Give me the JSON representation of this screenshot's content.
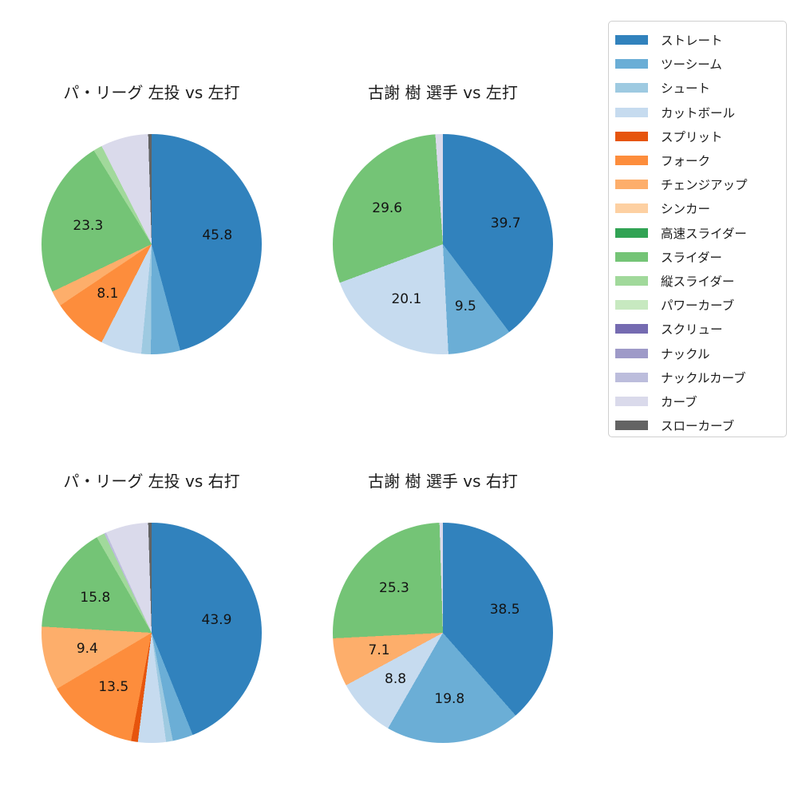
{
  "figure": {
    "background": "#ffffff",
    "value_unit": "percent"
  },
  "legend": {
    "position": "right",
    "items": [
      {
        "label": "ストレート",
        "color": "#3182bd"
      },
      {
        "label": "ツーシーム",
        "color": "#6baed6"
      },
      {
        "label": "シュート",
        "color": "#9ecae1"
      },
      {
        "label": "カットボール",
        "color": "#c6dbef"
      },
      {
        "label": "スプリット",
        "color": "#e6550d"
      },
      {
        "label": "フォーク",
        "color": "#fd8d3c"
      },
      {
        "label": "チェンジアップ",
        "color": "#fdae6b"
      },
      {
        "label": "シンカー",
        "color": "#fdd0a2"
      },
      {
        "label": "高速スライダー",
        "color": "#31a354"
      },
      {
        "label": "スライダー",
        "color": "#74c476"
      },
      {
        "label": "縦スライダー",
        "color": "#a1d99b"
      },
      {
        "label": "パワーカーブ",
        "color": "#c7e9c0"
      },
      {
        "label": "スクリュー",
        "color": "#756bb1"
      },
      {
        "label": "ナックル",
        "color": "#9e9ac8"
      },
      {
        "label": "ナックルカーブ",
        "color": "#bcbddc"
      },
      {
        "label": "カーブ",
        "color": "#dadaeb"
      },
      {
        "label": "スローカーブ",
        "color": "#636363"
      }
    ]
  },
  "chart_data": [
    {
      "type": "pie",
      "title": "パ・リーグ 左投 vs 左打",
      "start_angle": "top",
      "direction": "clockwise",
      "slices": [
        {
          "label": "ストレート",
          "value": 45.8,
          "display": "45.8"
        },
        {
          "label": "ツーシーム",
          "value": 4.3
        },
        {
          "label": "シュート",
          "value": 1.4
        },
        {
          "label": "カットボール",
          "value": 6.0
        },
        {
          "label": "フォーク",
          "value": 8.1,
          "display": "8.1"
        },
        {
          "label": "チェンジアップ",
          "value": 2.3
        },
        {
          "label": "スライダー",
          "value": 23.3,
          "display": "23.3"
        },
        {
          "label": "縦スライダー",
          "value": 1.3
        },
        {
          "label": "カーブ",
          "value": 7.0
        },
        {
          "label": "スローカーブ",
          "value": 0.5
        }
      ]
    },
    {
      "type": "pie",
      "title": "古謝 樹 選手 vs 左打",
      "start_angle": "top",
      "direction": "clockwise",
      "slices": [
        {
          "label": "ストレート",
          "value": 39.7,
          "display": "39.7"
        },
        {
          "label": "ツーシーム",
          "value": 9.5,
          "display": "9.5"
        },
        {
          "label": "カットボール",
          "value": 20.1,
          "display": "20.1"
        },
        {
          "label": "スライダー",
          "value": 29.6,
          "display": "29.6"
        },
        {
          "label": "カーブ",
          "value": 1.1
        }
      ]
    },
    {
      "type": "pie",
      "title": "パ・リーグ 左投 vs 右打",
      "start_angle": "top",
      "direction": "clockwise",
      "slices": [
        {
          "label": "ストレート",
          "value": 43.9,
          "display": "43.9"
        },
        {
          "label": "ツーシーム",
          "value": 3.0
        },
        {
          "label": "シュート",
          "value": 1.0
        },
        {
          "label": "カットボール",
          "value": 4.1
        },
        {
          "label": "スプリット",
          "value": 1.0
        },
        {
          "label": "フォーク",
          "value": 13.5,
          "display": "13.5"
        },
        {
          "label": "チェンジアップ",
          "value": 9.4,
          "display": "9.4"
        },
        {
          "label": "スライダー",
          "value": 15.8,
          "display": "15.8"
        },
        {
          "label": "縦スライダー",
          "value": 1.2
        },
        {
          "label": "ナックルカーブ",
          "value": 0.3
        },
        {
          "label": "カーブ",
          "value": 6.3
        },
        {
          "label": "スローカーブ",
          "value": 0.5
        }
      ]
    },
    {
      "type": "pie",
      "title": "古謝 樹 選手 vs 右打",
      "start_angle": "top",
      "direction": "clockwise",
      "slices": [
        {
          "label": "ストレート",
          "value": 38.5,
          "display": "38.5"
        },
        {
          "label": "ツーシーム",
          "value": 19.8,
          "display": "19.8"
        },
        {
          "label": "カットボール",
          "value": 8.8,
          "display": "8.8"
        },
        {
          "label": "チェンジアップ",
          "value": 7.1,
          "display": "7.1"
        },
        {
          "label": "スライダー",
          "value": 25.3,
          "display": "25.3"
        },
        {
          "label": "カーブ",
          "value": 0.5
        }
      ]
    }
  ]
}
